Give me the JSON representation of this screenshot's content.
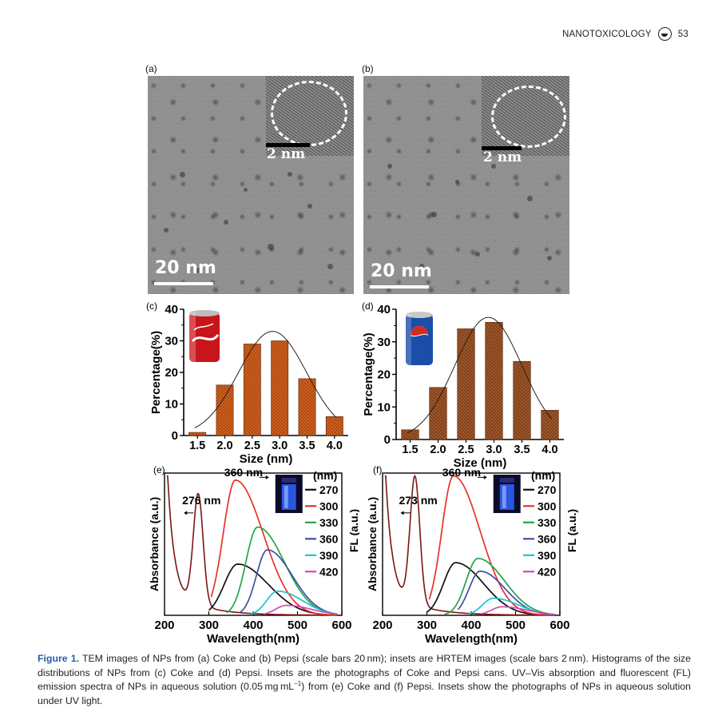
{
  "header": {
    "journal": "NANOTOXICOLOGY",
    "page": "53",
    "logo_icon": "journal-logo-icon"
  },
  "panels": {
    "a": {
      "label": "(a)",
      "scale_main": "20 nm",
      "scale_inset": "2 nm"
    },
    "b": {
      "label": "(b)",
      "scale_main": "20 nm",
      "scale_inset": "2 nm"
    },
    "c": {
      "label": "(c)",
      "inset_image": "coke-can"
    },
    "d": {
      "label": "(d)",
      "inset_image": "pepsi-can"
    },
    "e": {
      "label": "(e)",
      "inset_image": "uv-vial"
    },
    "f": {
      "label": "(f)",
      "inset_image": "uv-vial"
    }
  },
  "chart_data": [
    {
      "id": "c",
      "type": "bar",
      "xlabel": "Size (nm)",
      "ylabel": "Percentage(%)",
      "categories": [
        "1.5",
        "2.0",
        "2.5",
        "3.0",
        "3.5",
        "4.0"
      ],
      "values": [
        1,
        16,
        29,
        30,
        18,
        6
      ],
      "ylim": [
        0,
        40
      ],
      "yticks": [
        "0",
        "10",
        "20",
        "30",
        "40"
      ],
      "bar_color": "#e0651d",
      "fit_curve": {
        "peak_x": 2.87,
        "peak_y": 33,
        "sigma": 0.62
      }
    },
    {
      "id": "d",
      "type": "bar",
      "xlabel": "Size (nm)",
      "ylabel": "Percentage(%)",
      "categories": [
        "1.5",
        "2.0",
        "2.5",
        "3.0",
        "3.5",
        "4.0"
      ],
      "values": [
        3,
        16,
        34,
        36,
        24,
        9
      ],
      "ylim": [
        0,
        40
      ],
      "yticks": [
        "0",
        "10",
        "20",
        "30",
        "40"
      ],
      "bar_color": "#a85a2a",
      "fit_curve": {
        "peak_x": 2.9,
        "peak_y": 37.5,
        "sigma": 0.6
      }
    },
    {
      "id": "e",
      "type": "line",
      "xlabel": "Wavelength(nm)",
      "ylabel_left": "Absorbance (a.u.)",
      "ylabel_right": "FL (a.u.)",
      "xlim": [
        200,
        600
      ],
      "xticks": [
        "200",
        "300",
        "400",
        "500",
        "600"
      ],
      "annotations": [
        "276 nm",
        "360 nm"
      ],
      "legend_title": "(nm)",
      "series": [
        {
          "name": "270",
          "color": "#111111",
          "peak_x": 365,
          "peak_y": 0.36,
          "width": 55,
          "start": 300,
          "end": 590
        },
        {
          "name": "300",
          "color": "#e8312b",
          "peak_x": 360,
          "peak_y": 0.95,
          "width": 50,
          "start": 305,
          "end": 590
        },
        {
          "name": "330",
          "color": "#24a548",
          "peak_x": 410,
          "peak_y": 0.62,
          "width": 48,
          "start": 340,
          "end": 590
        },
        {
          "name": "360",
          "color": "#3e4fa3",
          "peak_x": 432,
          "peak_y": 0.46,
          "width": 45,
          "start": 370,
          "end": 590
        },
        {
          "name": "390",
          "color": "#19c2d0",
          "peak_x": 455,
          "peak_y": 0.17,
          "width": 45,
          "start": 395,
          "end": 590
        },
        {
          "name": "420",
          "color": "#d44ab1",
          "peak_x": 475,
          "peak_y": 0.07,
          "width": 45,
          "start": 425,
          "end": 590
        }
      ],
      "absorbance": {
        "name": "Absorbance",
        "color": "#7a1515",
        "peak_x": 276,
        "peak_y": 0.78
      }
    },
    {
      "id": "f",
      "type": "line",
      "xlabel": "Wavelength(nm)",
      "ylabel_left": "Absorbance (a.u.)",
      "ylabel_right": "FL (a.u.)",
      "xlim": [
        200,
        600
      ],
      "xticks": [
        "200",
        "300",
        "400",
        "500",
        "600"
      ],
      "annotations": [
        "273 nm",
        "360 nm"
      ],
      "legend_title": "(nm)",
      "series": [
        {
          "name": "270",
          "color": "#111111",
          "peak_x": 365,
          "peak_y": 0.37,
          "width": 50,
          "start": 300,
          "end": 590
        },
        {
          "name": "300",
          "color": "#e8312b",
          "peak_x": 360,
          "peak_y": 0.98,
          "width": 48,
          "start": 305,
          "end": 590
        },
        {
          "name": "330",
          "color": "#24a548",
          "peak_x": 415,
          "peak_y": 0.4,
          "width": 48,
          "start": 340,
          "end": 590
        },
        {
          "name": "360",
          "color": "#3e4fa3",
          "peak_x": 420,
          "peak_y": 0.31,
          "width": 45,
          "start": 370,
          "end": 590
        },
        {
          "name": "390",
          "color": "#19c2d0",
          "peak_x": 450,
          "peak_y": 0.12,
          "width": 45,
          "start": 395,
          "end": 590
        },
        {
          "name": "420",
          "color": "#d44ab1",
          "peak_x": 470,
          "peak_y": 0.06,
          "width": 45,
          "start": 425,
          "end": 590
        }
      ],
      "absorbance": {
        "name": "Absorbance",
        "color": "#7a1515",
        "peak_x": 273,
        "peak_y": 0.9
      }
    }
  ],
  "caption": {
    "figure_label": "Figure 1.",
    "text_1": "TEM images of NPs from (a) Coke and (b) Pepsi (scale bars 20 nm); insets are HRTEM images (scale bars 2 nm). Histograms of the size distributions of NPs from (c) Coke and (d) Pepsi. Insets are the photographs of Coke and Pepsi cans. UV–Vis absorption and fluorescent (FL) emission spectra of NPs in aqueous solution (0.05 mg mL",
    "superscript": "−1",
    "text_2": ") from (e) Coke and (f) Pepsi. Insets show the photographs of NPs in aqueous solution under UV light."
  }
}
